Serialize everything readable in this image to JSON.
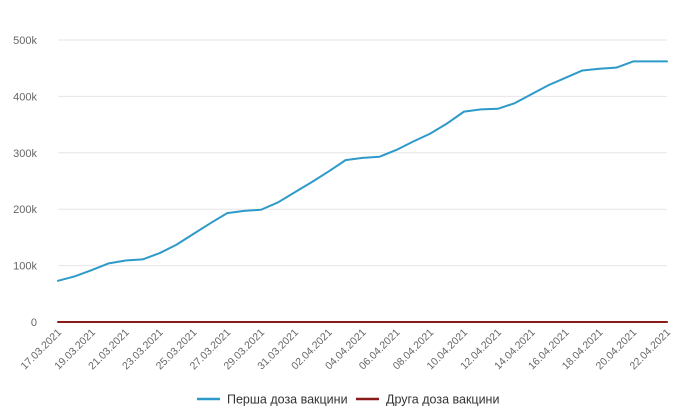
{
  "chart_data": {
    "type": "line",
    "title": "",
    "xlabel": "",
    "ylabel": "",
    "x": [
      "17.03.2021",
      "18.03.2021",
      "19.03.2021",
      "20.03.2021",
      "21.03.2021",
      "22.03.2021",
      "23.03.2021",
      "24.03.2021",
      "25.03.2021",
      "26.03.2021",
      "27.03.2021",
      "28.03.2021",
      "29.03.2021",
      "30.03.2021",
      "31.03.2021",
      "01.04.2021",
      "02.04.2021",
      "03.04.2021",
      "04.04.2021",
      "05.04.2021",
      "06.04.2021",
      "07.04.2021",
      "08.04.2021",
      "09.04.2021",
      "10.04.2021",
      "11.04.2021",
      "12.04.2021",
      "13.04.2021",
      "14.04.2021",
      "15.04.2021",
      "16.04.2021",
      "17.04.2021",
      "18.04.2021",
      "19.04.2021",
      "20.04.2021",
      "21.04.2021",
      "22.04.2021"
    ],
    "x_tick_labels": [
      "17.03.2021",
      "19.03.2021",
      "21.03.2021",
      "23.03.2021",
      "25.03.2021",
      "27.03.2021",
      "29.03.2021",
      "31.03.2021",
      "02.04.2021",
      "04.04.2021",
      "06.04.2021",
      "08.04.2021",
      "10.04.2021",
      "12.04.2021",
      "14.04.2021",
      "16.04.2021",
      "18.04.2021",
      "20.04.2021",
      "22.04.2021"
    ],
    "y_tick_labels": [
      "0",
      "100k",
      "200k",
      "300k",
      "400k",
      "500k"
    ],
    "ylim": [
      0,
      500000
    ],
    "grid": true,
    "legend_position": "bottom",
    "series": [
      {
        "name": "Перша доза вакцини",
        "color": "#2e9ac9",
        "values": [
          73000,
          81000,
          92000,
          104000,
          109000,
          111000,
          122000,
          137000,
          156000,
          175000,
          193000,
          197000,
          199000,
          212000,
          230000,
          248000,
          267000,
          287000,
          291000,
          293000,
          305000,
          320000,
          334000,
          352000,
          373000,
          377000,
          378000,
          388000,
          404000,
          420000,
          433000,
          446000,
          449000,
          451000,
          462000,
          462000,
          462000
        ]
      },
      {
        "name": "Друга доза вакцини",
        "color": "#8b1a1a",
        "values": [
          0,
          0,
          0,
          0,
          0,
          0,
          0,
          0,
          0,
          0,
          0,
          0,
          0,
          0,
          0,
          0,
          0,
          0,
          0,
          0,
          0,
          0,
          0,
          0,
          0,
          0,
          0,
          0,
          0,
          0,
          0,
          0,
          0,
          0,
          0,
          0,
          0
        ]
      }
    ]
  }
}
